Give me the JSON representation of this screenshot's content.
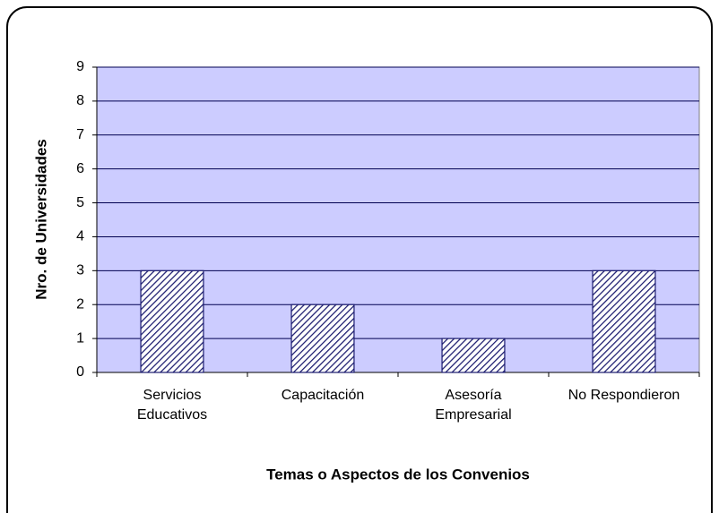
{
  "chart_data": {
    "type": "bar",
    "x_label": "Temas o Aspectos de los Convenios",
    "y_label": "Nro. de Universidades",
    "categories": [
      "Servicios Educativos",
      "Capacitación",
      "Asesoría Empresarial",
      "No Respondieron"
    ],
    "values": [
      3,
      2,
      1,
      3
    ],
    "color": "#1a1a6e",
    "ylim": [
      0,
      9
    ],
    "yticks": [
      0,
      1,
      2,
      3,
      4,
      5,
      6,
      7,
      8,
      9
    ],
    "grid": true
  }
}
